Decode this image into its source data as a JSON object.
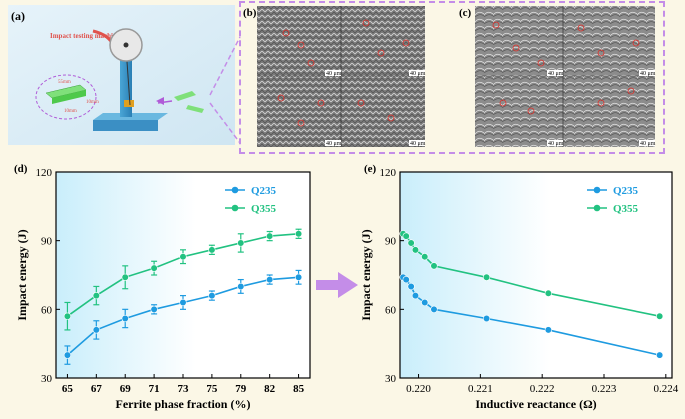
{
  "panel_labels": {
    "a": "(a)",
    "b": "(b)",
    "c": "(c)",
    "d": "(d)",
    "e": "(e)"
  },
  "illustration": {
    "machine_label": "Impact testing machine",
    "specimen_dims": [
      "55mm",
      "10mm",
      "10mm"
    ]
  },
  "micrographs": {
    "scale_label": "40 μm"
  },
  "colors": {
    "Q235": "#1e9be0",
    "Q355": "#22c281",
    "accent": "#c48de8"
  },
  "chart_data": [
    {
      "id": "d",
      "type": "line",
      "title": "",
      "xlabel": "Ferrite phase fraction (%)",
      "ylabel": "Impact energy (J)",
      "categories": [
        "65",
        "67",
        "69",
        "71",
        "73",
        "75",
        "79",
        "82",
        "85"
      ],
      "ylim": [
        30,
        120
      ],
      "yticks": [
        "30",
        "60",
        "90",
        "120"
      ],
      "legend_position": "top-right",
      "series": [
        {
          "name": "Q235",
          "values": [
            40,
            51,
            56,
            60,
            63,
            66,
            70,
            73,
            74
          ],
          "errors": [
            4,
            4,
            4,
            2,
            3,
            2,
            3,
            2,
            3
          ]
        },
        {
          "name": "Q355",
          "values": [
            57,
            66,
            74,
            78,
            83,
            86,
            89,
            92,
            93
          ],
          "errors": [
            6,
            4,
            5,
            3,
            3,
            2,
            4,
            2,
            2
          ]
        }
      ]
    },
    {
      "id": "e",
      "type": "line",
      "title": "",
      "xlabel": "Inductive reactance (Ω)",
      "ylabel": "Impact energy (J)",
      "xlim": [
        0.2197,
        0.2241
      ],
      "xticks": [
        "0.220",
        "0.221",
        "0.222",
        "0.223",
        "0.224"
      ],
      "ylim": [
        30,
        120
      ],
      "yticks": [
        "30",
        "60",
        "90",
        "120"
      ],
      "legend_position": "top-right",
      "series": [
        {
          "name": "Q235",
          "x": [
            0.21975,
            0.2198,
            0.21988,
            0.21995,
            0.2201,
            0.22025,
            0.2211,
            0.2221,
            0.2239
          ],
          "values": [
            74,
            73,
            70,
            66,
            63,
            60,
            56,
            51,
            40
          ]
        },
        {
          "name": "Q355",
          "x": [
            0.21975,
            0.2198,
            0.21988,
            0.21995,
            0.2201,
            0.22025,
            0.2211,
            0.2221,
            0.2239
          ],
          "values": [
            93,
            92,
            89,
            86,
            83,
            79,
            74,
            67,
            57
          ]
        }
      ]
    }
  ]
}
